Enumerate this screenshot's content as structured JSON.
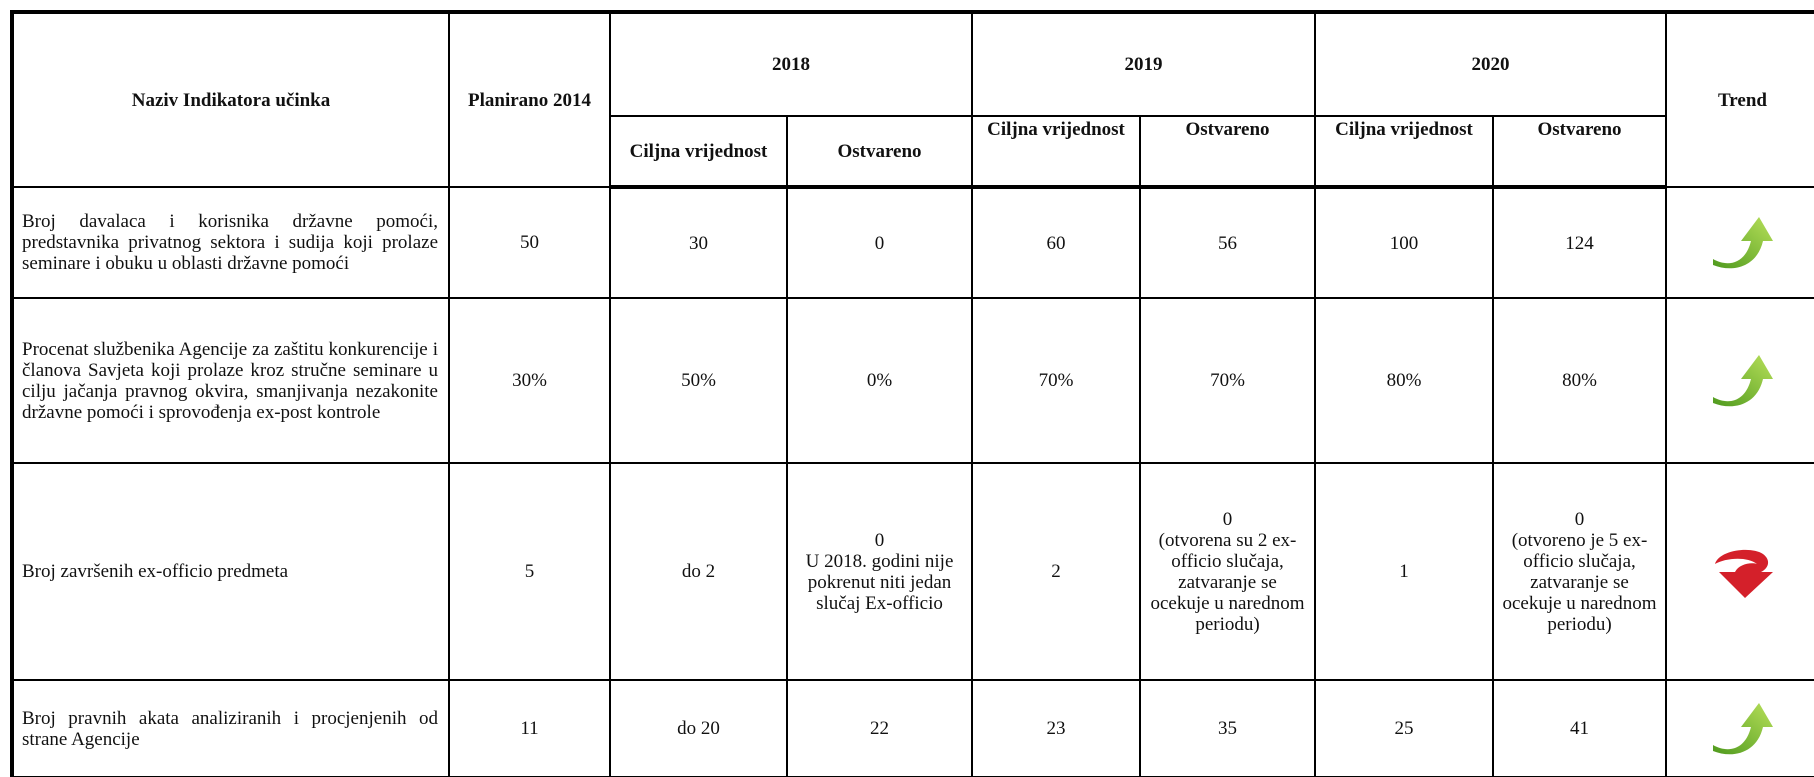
{
  "header": {
    "indicator": "Naziv Indikatora učinka",
    "planned": "Planirano 2014",
    "years": [
      "2018",
      "2019",
      "2020"
    ],
    "target": "Ciljna vrijednost",
    "achieved": "Ostvareno",
    "trend": "Trend"
  },
  "table": {
    "rows": [
      [
        "Broj davalaca i korisnika državne pomoći, predstavnika privatnog sektora i sudija koji prolaze seminare i obuku u oblasti državne pomoći",
        "50",
        "30",
        "0",
        "60",
        "56",
        "100",
        "124"
      ],
      [
        "Procenat službenika Agencije za zaštitu konkurencije i članova Savjeta koji prolaze kroz stručne seminare u cilju  jačanja pravnog okvira, smanjivanja nezakonite državne pomoći i sprovođenja ex-post kontrole",
        "30%",
        "50%",
        "0%",
        "70%",
        "70%",
        "80%",
        "80%"
      ],
      [
        "Broj završenih ex-officio predmeta",
        "5",
        "do 2",
        "0\nU 2018. godini nije pokrenut niti jedan slučaj Ex-officio",
        "2",
        "0\n(otvorena su 2 ex-officio slučaja, zatvaranje se ocekuje u narednom periodu)",
        "1",
        "0\n(otvoreno je 5 ex-officio slučaja, zatvaranje se ocekuje u narednom periodu)"
      ],
      [
        "Broj pravnih akata analiziranih i procjenjenih od strane Agencije",
        "11",
        "do 20",
        "22",
        "23",
        "35",
        "25",
        "41"
      ]
    ]
  }
}
